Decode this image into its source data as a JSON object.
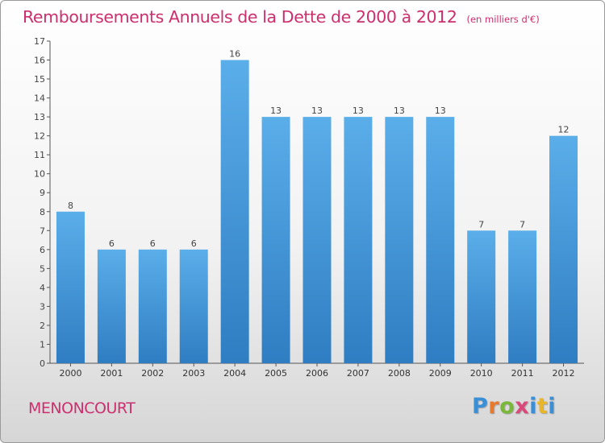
{
  "header": {
    "title": "Remboursements Annuels de la Dette de 2000 à 2012",
    "unit": "(en milliers d'€)"
  },
  "footer": {
    "commune": "MENONCOURT",
    "brand": "Proxiti"
  },
  "colors": {
    "title": "#cc2f6e",
    "bar_top": "#5aaee9",
    "bar_bottom": "#2f7dc2",
    "axis": "#555555"
  },
  "chart_data": {
    "type": "bar",
    "title": "Remboursements Annuels de la Dette de 2000 à 2012",
    "subtitle": "(en milliers d'€)",
    "xlabel": "",
    "ylabel": "",
    "categories": [
      "2000",
      "2001",
      "2002",
      "2003",
      "2004",
      "2005",
      "2006",
      "2007",
      "2008",
      "2009",
      "2010",
      "2011",
      "2012"
    ],
    "values": [
      8,
      6,
      6,
      6,
      16,
      13,
      13,
      13,
      13,
      13,
      7,
      7,
      12
    ],
    "ylim": [
      0,
      17
    ],
    "yticks": [
      0,
      1,
      2,
      3,
      4,
      5,
      6,
      7,
      8,
      9,
      10,
      11,
      12,
      13,
      14,
      15,
      16,
      17
    ],
    "grid": false,
    "legend": "none"
  }
}
